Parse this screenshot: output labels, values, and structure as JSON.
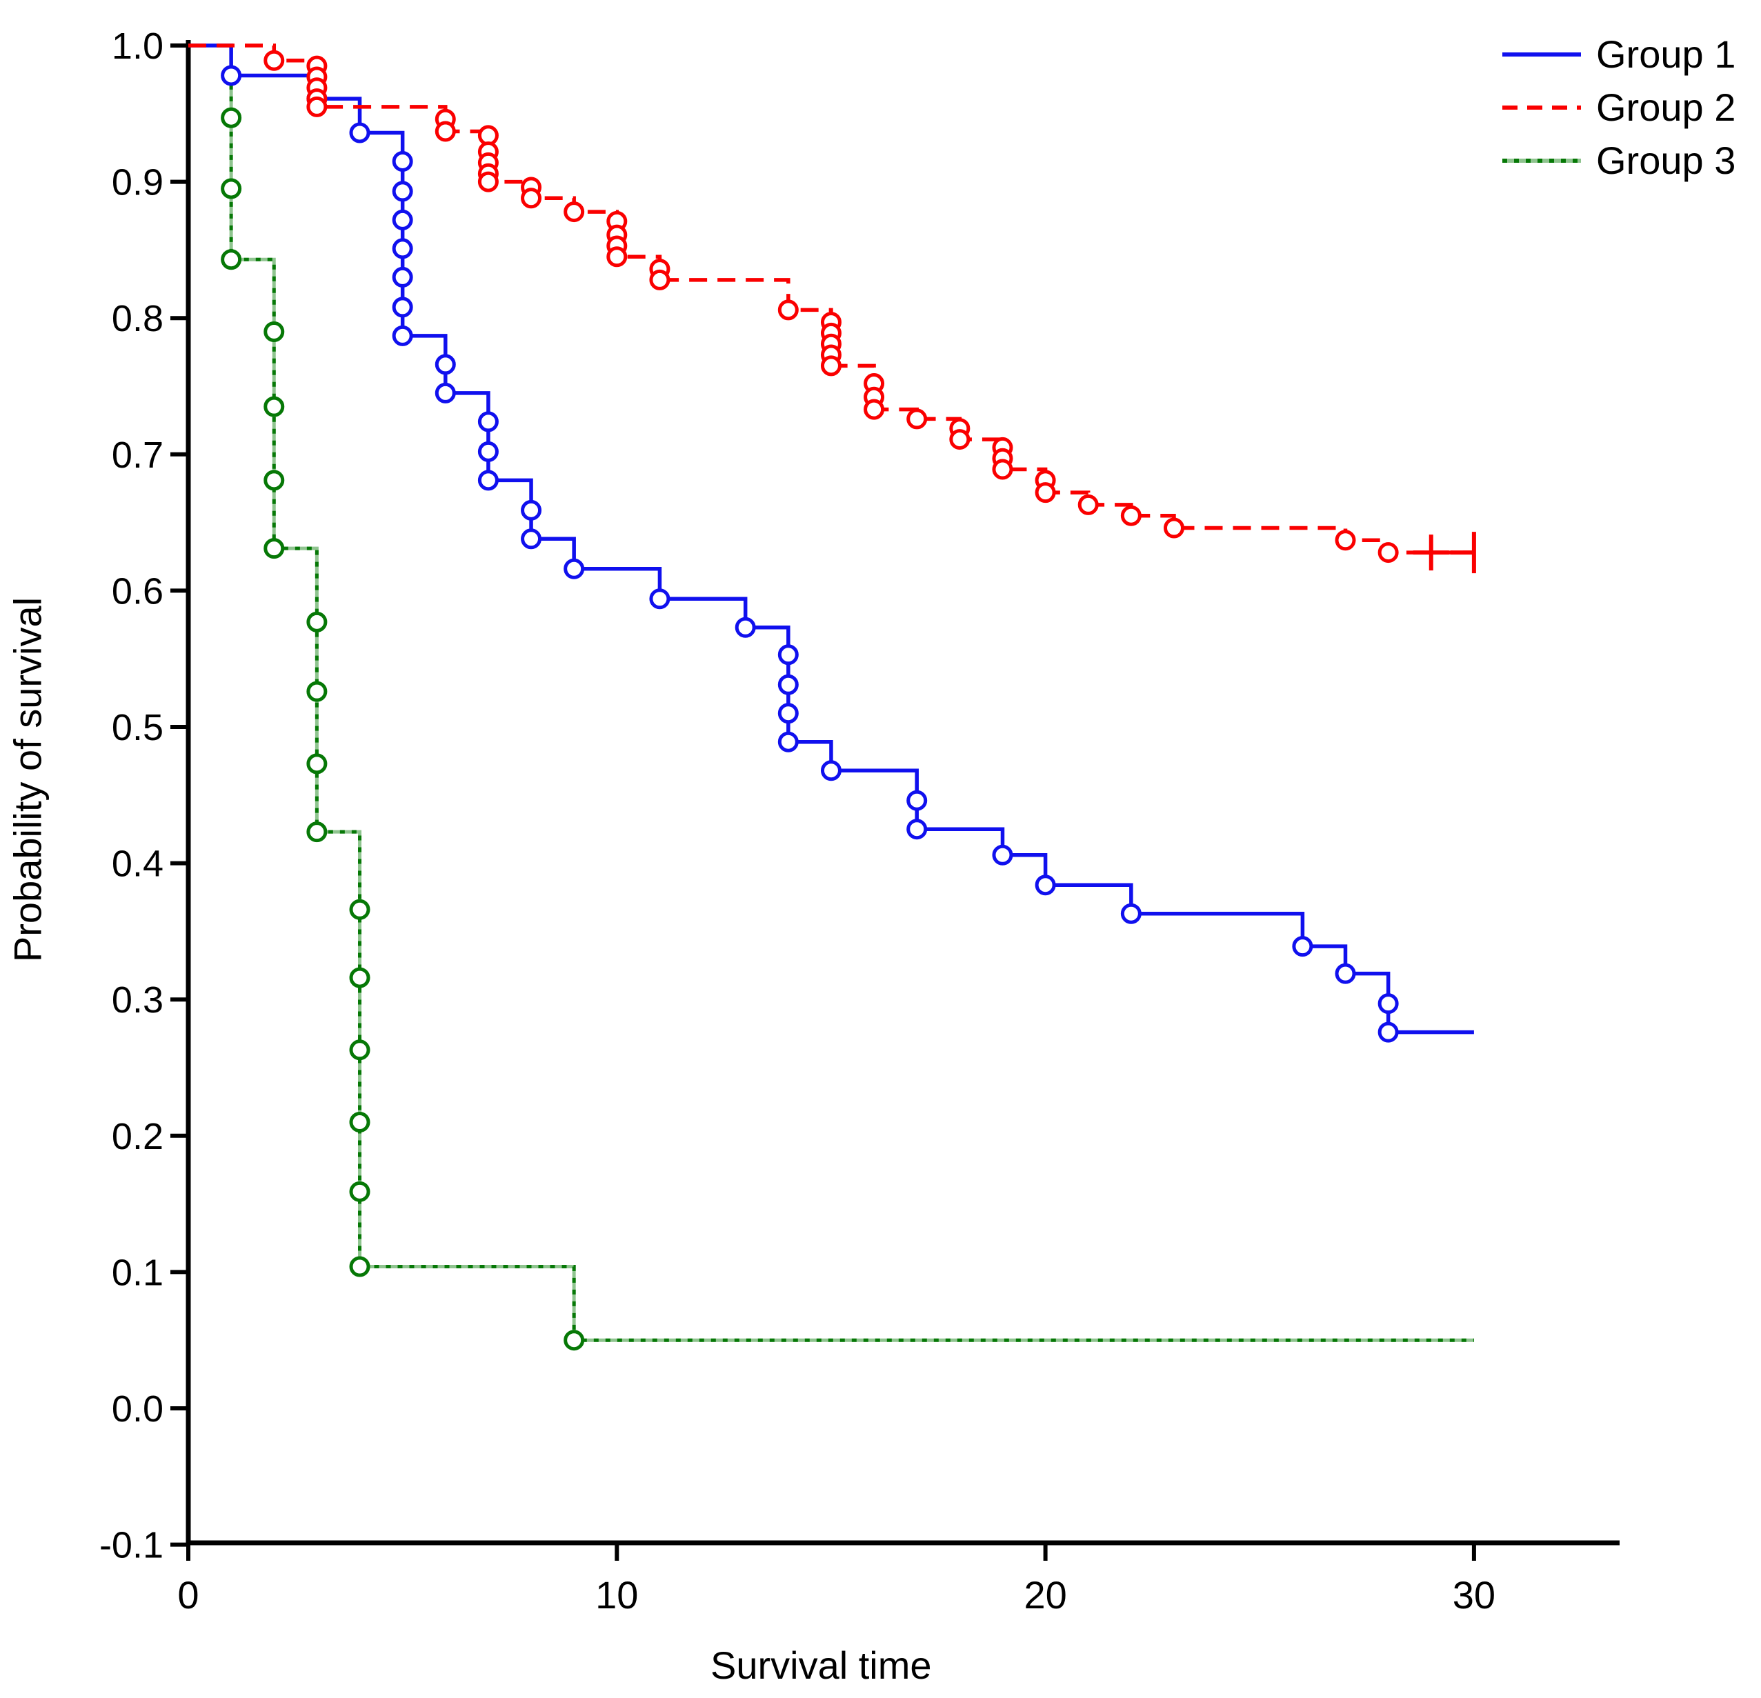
{
  "figure": {
    "x_axis_title": "Survival time",
    "y_axis_title": "Probability of survival"
  },
  "legend": {
    "items": [
      {
        "label": "Group 1",
        "color": "#1010EE",
        "style": "solid"
      },
      {
        "label": "Group 2",
        "color": "#FA0000",
        "style": "dashed"
      },
      {
        "label": "Group 3",
        "color": "#067806",
        "style": "dotted",
        "underlay_color": "#8FC48F"
      }
    ]
  },
  "chart_data": {
    "type": "line",
    "subtype": "kaplan-meier-step",
    "title": "",
    "xlabel": "Survival time",
    "ylabel": "Probability of survival",
    "xlim": [
      0,
      30
    ],
    "ylim": [
      -0.1,
      1.0
    ],
    "x_ticks": [
      "0",
      "10",
      "20",
      "30"
    ],
    "y_ticks": [
      "1.0",
      "0.9",
      "0.8",
      "0.7",
      "0.6",
      "0.5",
      "0.4",
      "0.3",
      "0.2",
      "0.1",
      "0.0",
      "-0.1"
    ],
    "grid": false,
    "legend_position": "top-right",
    "marker": "open-circle",
    "series": [
      {
        "name": "Group 3",
        "color": "#067806",
        "underlay_color": "#8FC48F",
        "line_style": "dotted",
        "start": [
          0,
          1.0
        ],
        "end_x": 30,
        "events": [
          [
            1,
            0.947
          ],
          [
            1,
            0.895
          ],
          [
            1,
            0.843
          ],
          [
            2,
            0.79
          ],
          [
            2,
            0.735
          ],
          [
            2,
            0.681
          ],
          [
            2,
            0.631
          ],
          [
            3,
            0.577
          ],
          [
            3,
            0.526
          ],
          [
            3,
            0.473
          ],
          [
            3,
            0.423
          ],
          [
            4,
            0.366
          ],
          [
            4,
            0.316
          ],
          [
            4,
            0.263
          ],
          [
            4,
            0.21
          ],
          [
            4,
            0.159
          ],
          [
            4,
            0.104
          ],
          [
            9,
            0.05
          ]
        ]
      },
      {
        "name": "Group 1",
        "color": "#1010EE",
        "line_style": "solid",
        "start": [
          0,
          1.0
        ],
        "end_x": 30,
        "events": [
          [
            1,
            0.978
          ],
          [
            3,
            0.961
          ],
          [
            4,
            0.936
          ],
          [
            5,
            0.915
          ],
          [
            5,
            0.893
          ],
          [
            5,
            0.872
          ],
          [
            5,
            0.851
          ],
          [
            5,
            0.83
          ],
          [
            5,
            0.808
          ],
          [
            5,
            0.787
          ],
          [
            6,
            0.766
          ],
          [
            6,
            0.745
          ],
          [
            7,
            0.724
          ],
          [
            7,
            0.702
          ],
          [
            7,
            0.681
          ],
          [
            8,
            0.659
          ],
          [
            8,
            0.638
          ],
          [
            9,
            0.616
          ],
          [
            11,
            0.594
          ],
          [
            13,
            0.573
          ],
          [
            14,
            0.553
          ],
          [
            14,
            0.531
          ],
          [
            14,
            0.51
          ],
          [
            14,
            0.489
          ],
          [
            15,
            0.468
          ],
          [
            17,
            0.446
          ],
          [
            17,
            0.425
          ],
          [
            19,
            0.406
          ],
          [
            20,
            0.384
          ],
          [
            22,
            0.363
          ],
          [
            26,
            0.339
          ],
          [
            27,
            0.319
          ],
          [
            28,
            0.297
          ],
          [
            28,
            0.276
          ]
        ]
      },
      {
        "name": "Group 2",
        "color": "#FA0000",
        "line_style": "dashed",
        "start": [
          0,
          1.0
        ],
        "end_x": 30,
        "events": [
          [
            2,
            0.989
          ],
          [
            3,
            0.985
          ],
          [
            3,
            0.977
          ],
          [
            3,
            0.969
          ],
          [
            3,
            0.961
          ],
          [
            3,
            0.955
          ],
          [
            6,
            0.946
          ],
          [
            6,
            0.937
          ],
          [
            7,
            0.934
          ],
          [
            7,
            0.922
          ],
          [
            7,
            0.914
          ],
          [
            7,
            0.906
          ],
          [
            7,
            0.9
          ],
          [
            8,
            0.896
          ],
          [
            8,
            0.888
          ],
          [
            9,
            0.878
          ],
          [
            10,
            0.871
          ],
          [
            10,
            0.861
          ],
          [
            10,
            0.853
          ],
          [
            10,
            0.845
          ],
          [
            11,
            0.836
          ],
          [
            11,
            0.828
          ],
          [
            14,
            0.806
          ],
          [
            15,
            0.797
          ],
          [
            15,
            0.789
          ],
          [
            15,
            0.781
          ],
          [
            15,
            0.773
          ],
          [
            15,
            0.765
          ],
          [
            16,
            0.752
          ],
          [
            16,
            0.742
          ],
          [
            16,
            0.733
          ],
          [
            17,
            0.726
          ],
          [
            18,
            0.719
          ],
          [
            18,
            0.711
          ],
          [
            19,
            0.705
          ],
          [
            19,
            0.697
          ],
          [
            19,
            0.689
          ],
          [
            20,
            0.681
          ],
          [
            20,
            0.672
          ],
          [
            21,
            0.663
          ],
          [
            22,
            0.655
          ],
          [
            23,
            0.646
          ],
          [
            27,
            0.637
          ],
          [
            28,
            0.628
          ]
        ]
      }
    ],
    "censor_marks": [
      {
        "series": "Group 2",
        "x": 29,
        "y": 0.628,
        "shape": "plus"
      },
      {
        "series": "Group 2",
        "x": 30,
        "y": 0.628,
        "shape": "end-bar"
      }
    ]
  }
}
